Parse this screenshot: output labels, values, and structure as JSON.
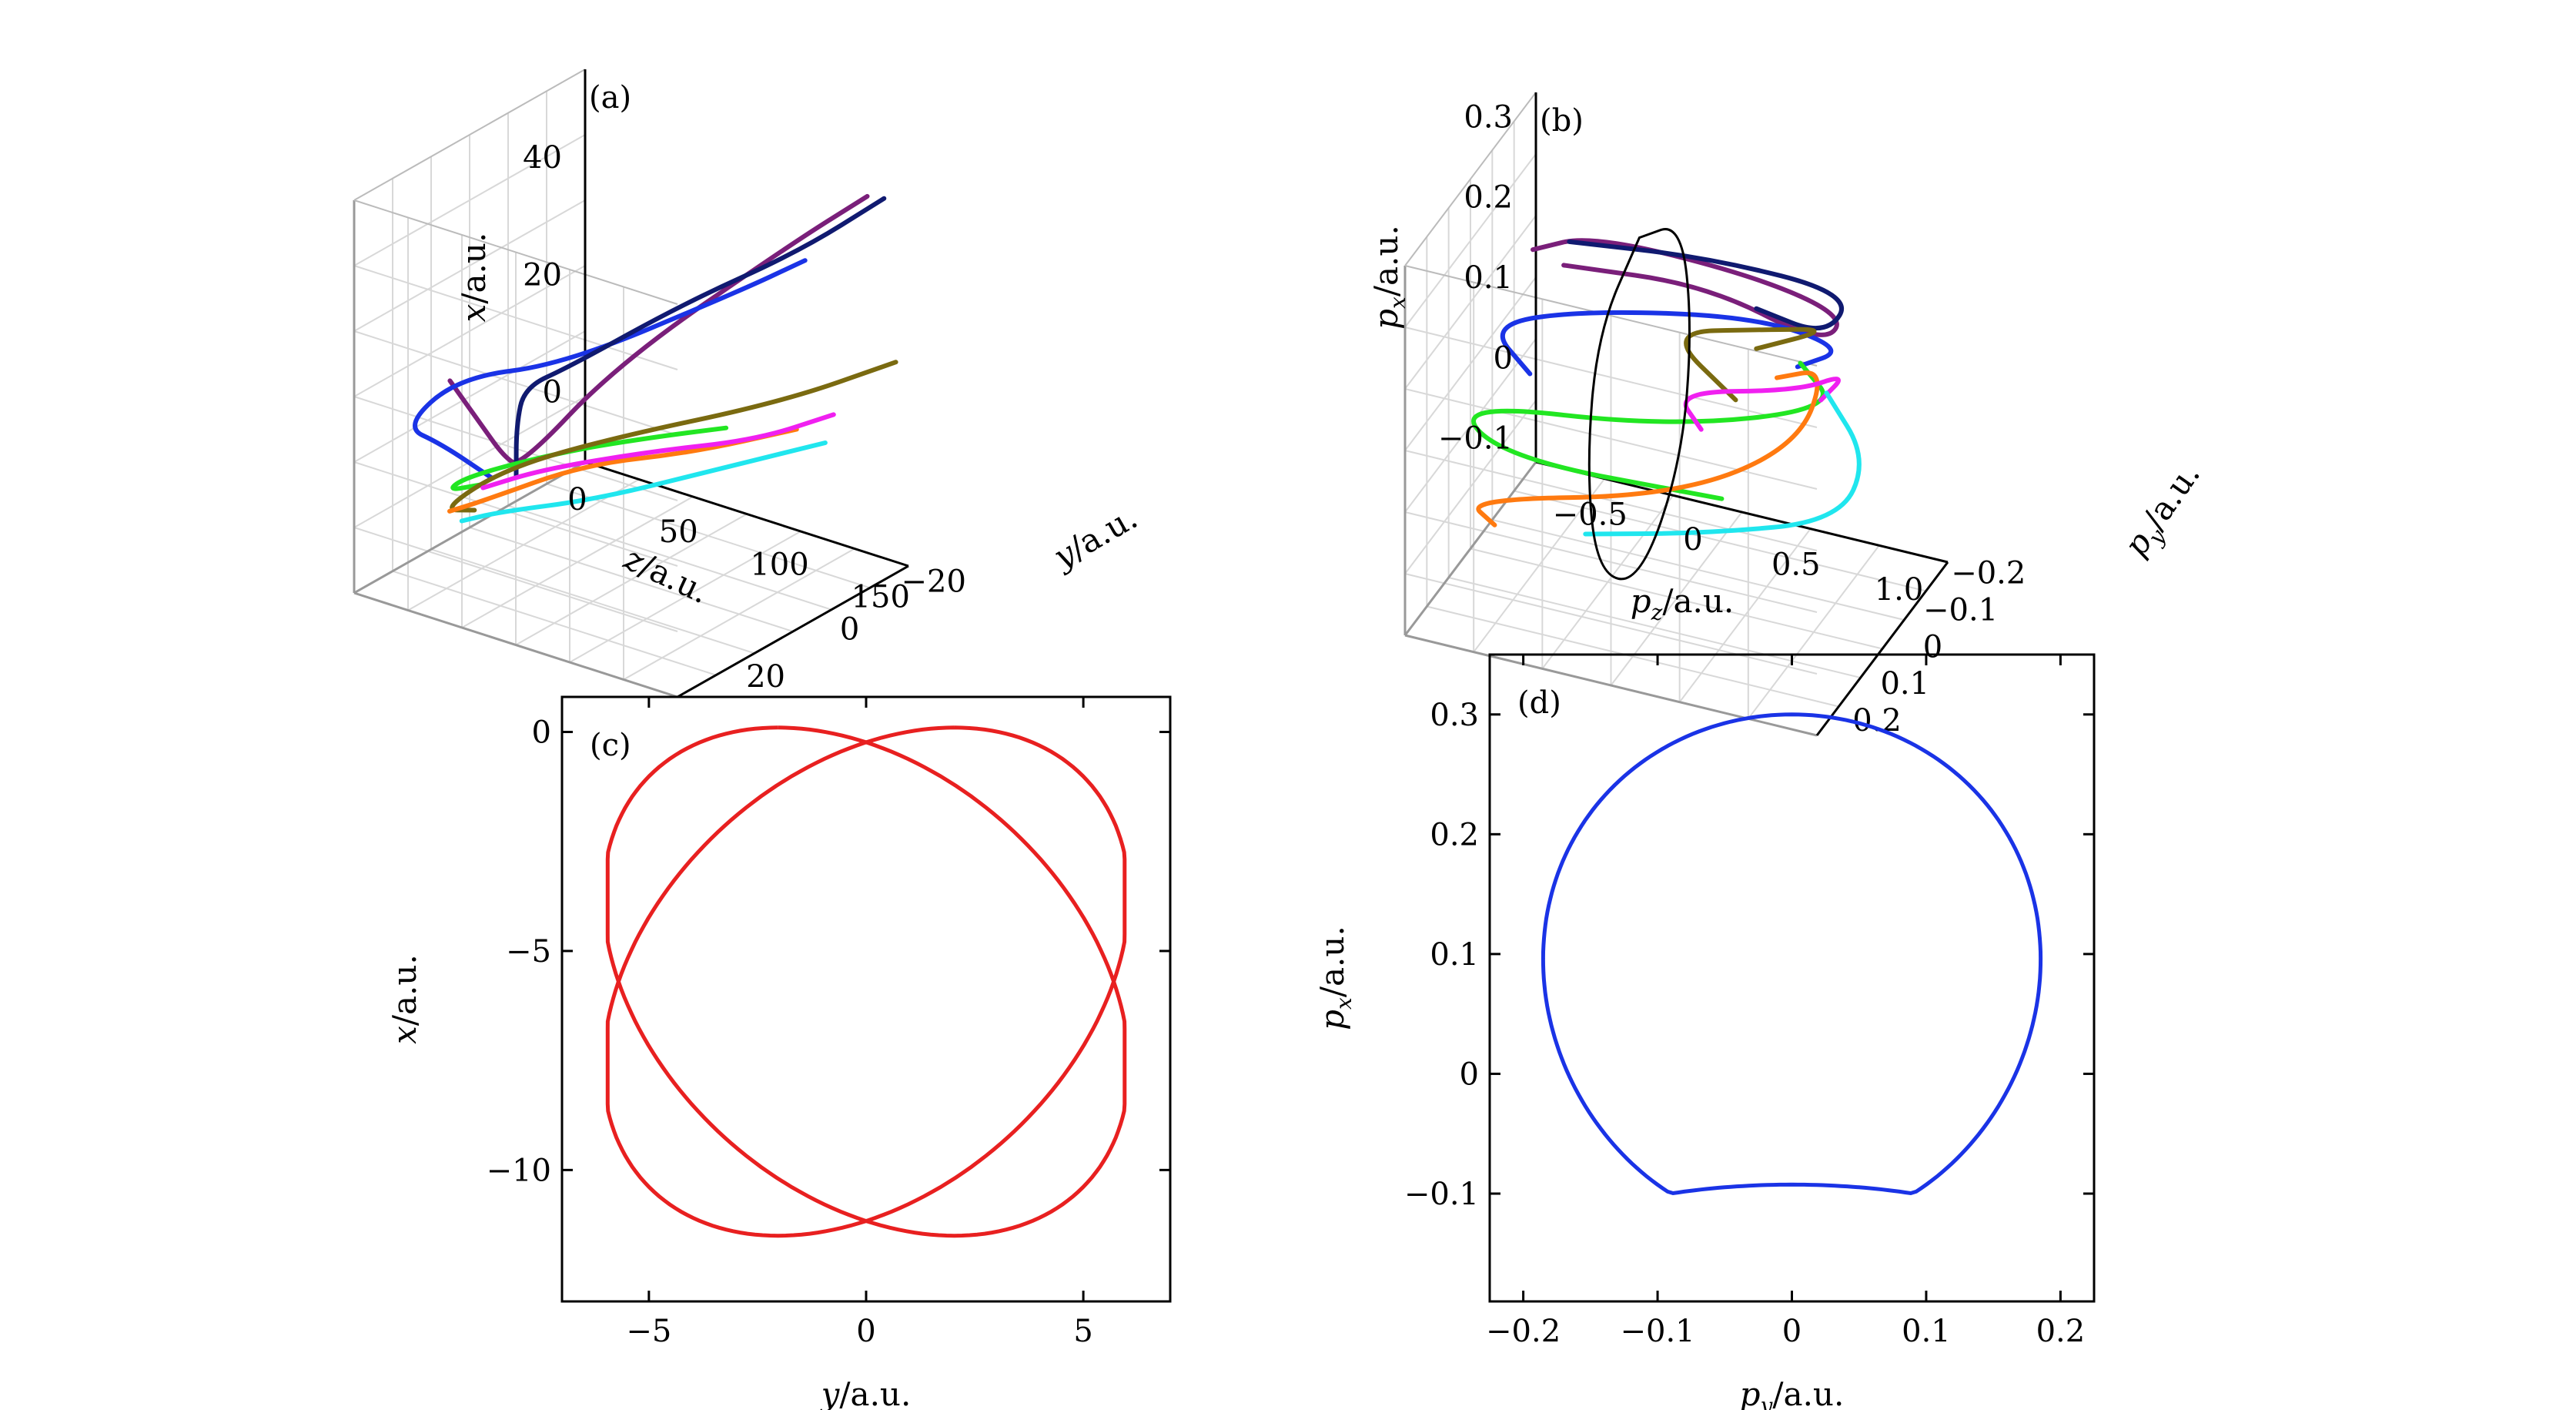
{
  "chart_data": [
    {
      "panel": "(a)",
      "type": "line",
      "projection": "3d",
      "xlabel": "z",
      "ylabel": "y",
      "zlabel": "x",
      "unit": "/a.u.",
      "xlim": [
        0,
        160
      ],
      "ylim": [
        -25,
        30
      ],
      "zlim": [
        -12,
        55
      ],
      "xticks": [
        "0",
        "50",
        "100",
        "150"
      ],
      "yticks": [
        "−20",
        "0",
        "20"
      ],
      "zticks": [
        "0",
        "20",
        "40"
      ],
      "grid": true,
      "series": [
        {
          "color": "#7a1f7a",
          "points": [
            [
              10,
              12,
              18
            ],
            [
              14,
              6,
              8
            ],
            [
              20,
              4,
              3
            ],
            [
              28,
              4,
              2
            ],
            [
              60,
              -4,
              20
            ],
            [
              120,
              -16,
              42
            ],
            [
              150,
              -20,
              52
            ]
          ]
        },
        {
          "color": "#1a33e6",
          "points": [
            [
              12,
              3,
              -2
            ],
            [
              10,
              14,
              8
            ],
            [
              8,
              22,
              14
            ],
            [
              14,
              12,
              19
            ],
            [
              50,
              4,
              22
            ],
            [
              110,
              -8,
              36
            ],
            [
              140,
              -10,
              44
            ]
          ]
        },
        {
          "color": "#101a70",
          "points": [
            [
              22,
              2,
              -1
            ],
            [
              20,
              1,
              7
            ],
            [
              24,
              1,
              14
            ],
            [
              40,
              -2,
              18
            ],
            [
              80,
              -10,
              30
            ],
            [
              120,
              -18,
              40
            ],
            [
              150,
              -24,
              50
            ]
          ]
        },
        {
          "color": "#22e622",
          "points": [
            [
              12,
              6,
              -2
            ],
            [
              8,
              12,
              -1
            ],
            [
              20,
              12,
              3
            ],
            [
              60,
              8,
              10
            ],
            [
              100,
              6,
              16
            ],
            [
              130,
              4,
              20
            ]
          ]
        },
        {
          "color": "#7a6a10",
          "points": [
            [
              18,
              10,
              -4
            ],
            [
              14,
              16,
              -2
            ],
            [
              24,
              6,
              2
            ],
            [
              60,
              -2,
              8
            ],
            [
              120,
              -14,
              16
            ],
            [
              160,
              -22,
              24
            ]
          ]
        },
        {
          "color": "#ff7a10",
          "points": [
            [
              14,
              14,
              -3
            ],
            [
              22,
              10,
              -2
            ],
            [
              60,
              4,
              6
            ],
            [
              100,
              -2,
              10
            ],
            [
              140,
              -8,
              16
            ]
          ]
        },
        {
          "color": "#f020f0",
          "points": [
            [
              18,
              8,
              -1
            ],
            [
              40,
              4,
              3
            ],
            [
              80,
              -2,
              8
            ],
            [
              120,
              -8,
              12
            ],
            [
              150,
              -12,
              18
            ]
          ]
        },
        {
          "color": "#20e6ee",
          "points": [
            [
              20,
              14,
              -4
            ],
            [
              30,
              10,
              -3
            ],
            [
              70,
              6,
              2
            ],
            [
              110,
              -2,
              8
            ],
            [
              150,
              -10,
              14
            ]
          ]
        }
      ]
    },
    {
      "panel": "(b)",
      "type": "line",
      "projection": "3d",
      "xlabel": "p_z",
      "ylabel": "p_y",
      "zlabel": "p_x",
      "unit": "/a.u.",
      "xlim": [
        -0.8,
        1.2
      ],
      "ylim": [
        -0.22,
        0.25
      ],
      "zlim": [
        -0.13,
        0.33
      ],
      "xticks": [
        "−0.5",
        "0",
        "0.5",
        "1.0"
      ],
      "yticks": [
        "−0.2",
        "−0.1",
        "0",
        "0.1",
        "0.2"
      ],
      "zticks": [
        "−0.1",
        "0",
        "0.1",
        "0.2",
        "0.3"
      ],
      "grid": true,
      "series": [
        {
          "color": "#7a1f7a",
          "points": [
            [
              -0.45,
              0.05,
              0.28
            ],
            [
              -0.2,
              0.02,
              0.3
            ],
            [
              0.5,
              -0.05,
              0.26
            ],
            [
              0.9,
              -0.08,
              0.22
            ],
            [
              0.8,
              -0.06,
              0.19
            ],
            [
              0.3,
              -0.02,
              0.25
            ],
            [
              -0.3,
              0.05,
              0.27
            ]
          ]
        },
        {
          "color": "#1a33e6",
          "points": [
            [
              -0.45,
              0.06,
              0.13
            ],
            [
              -0.6,
              0.1,
              0.2
            ],
            [
              -0.2,
              0.05,
              0.22
            ],
            [
              0.5,
              -0.05,
              0.21
            ],
            [
              0.9,
              -0.08,
              0.18
            ],
            [
              0.7,
              -0.05,
              0.16
            ]
          ]
        },
        {
          "color": "#101a70",
          "points": [
            [
              -0.3,
              0.03,
              0.29
            ],
            [
              0.3,
              -0.03,
              0.28
            ],
            [
              0.9,
              -0.1,
              0.24
            ],
            [
              0.8,
              -0.08,
              0.19
            ],
            [
              0.5,
              -0.05,
              0.22
            ]
          ]
        },
        {
          "color": "#22e622",
          "points": [
            [
              0.4,
              0.0,
              0.0
            ],
            [
              -0.5,
              0.12,
              0.05
            ],
            [
              -0.7,
              0.15,
              0.12
            ],
            [
              0.2,
              0.05,
              0.1
            ],
            [
              0.9,
              -0.05,
              0.12
            ],
            [
              0.7,
              -0.06,
              0.16
            ]
          ]
        },
        {
          "color": "#7a6a10",
          "points": [
            [
              0.4,
              -0.05,
              0.1
            ],
            [
              0.1,
              -0.02,
              0.18
            ],
            [
              0.5,
              -0.08,
              0.18
            ],
            [
              0.8,
              -0.1,
              0.19
            ],
            [
              0.5,
              -0.05,
              0.17
            ]
          ]
        },
        {
          "color": "#ff7a10",
          "points": [
            [
              -0.5,
              0.15,
              -0.02
            ],
            [
              -0.6,
              0.18,
              0.02
            ],
            [
              0.2,
              0.02,
              0.0
            ],
            [
              0.7,
              -0.05,
              0.06
            ],
            [
              0.8,
              -0.08,
              0.15
            ],
            [
              0.6,
              -0.05,
              0.14
            ]
          ]
        },
        {
          "color": "#f020f0",
          "points": [
            [
              0.3,
              0.0,
              0.08
            ],
            [
              0.2,
              0.02,
              0.13
            ],
            [
              0.7,
              -0.05,
              0.13
            ],
            [
              0.9,
              -0.08,
              0.15
            ],
            [
              0.8,
              -0.06,
              0.12
            ]
          ]
        },
        {
          "color": "#20e6ee",
          "points": [
            [
              -0.1,
              0.12,
              -0.02
            ],
            [
              0.4,
              0.05,
              -0.02
            ],
            [
              0.9,
              -0.05,
              -0.02
            ],
            [
              1.0,
              -0.08,
              0.05
            ],
            [
              0.8,
              -0.08,
              0.12
            ]
          ]
        },
        {
          "color": "#000000",
          "points": [
            [
              0,
              0,
              0.3
            ],
            [
              0,
              0.15,
              0.25
            ],
            [
              0,
              0.19,
              0.1
            ],
            [
              0,
              0.15,
              -0.05
            ],
            [
              0,
              0,
              -0.13
            ],
            [
              0,
              -0.15,
              -0.05
            ],
            [
              0,
              -0.19,
              0.1
            ],
            [
              0,
              -0.15,
              0.25
            ],
            [
              0,
              0,
              0.3
            ]
          ]
        }
      ]
    },
    {
      "panel": "(c)",
      "type": "line",
      "xlabel": "y",
      "ylabel": "x",
      "unit": "/a.u.",
      "xlim": [
        -7,
        7
      ],
      "ylim": [
        -13,
        0.8
      ],
      "xticks": [
        -5,
        0,
        5
      ],
      "yticks": [
        0,
        -5,
        -10
      ],
      "xtick_labels": [
        "−5",
        "0",
        "5"
      ],
      "ytick_labels": [
        "0",
        "−5",
        "−10"
      ],
      "grid": false,
      "series": [
        {
          "color": "#e82020"
        }
      ]
    },
    {
      "panel": "(d)",
      "type": "line",
      "xlabel": "p_y",
      "ylabel": "p_x",
      "unit": "/a.u.",
      "xlim": [
        -0.225,
        0.225
      ],
      "ylim": [
        -0.19,
        0.35
      ],
      "xticks": [
        -0.2,
        -0.1,
        0,
        0.1,
        0.2
      ],
      "yticks": [
        -0.1,
        0,
        0.1,
        0.2,
        0.3
      ],
      "xtick_labels": [
        "−0.2",
        "−0.1",
        "0",
        "0.1",
        "0.2"
      ],
      "ytick_labels": [
        "−0.1",
        "0",
        "0.1",
        "0.2",
        "0.3"
      ],
      "grid": false,
      "series": [
        {
          "color": "#1a33e6"
        }
      ]
    }
  ]
}
